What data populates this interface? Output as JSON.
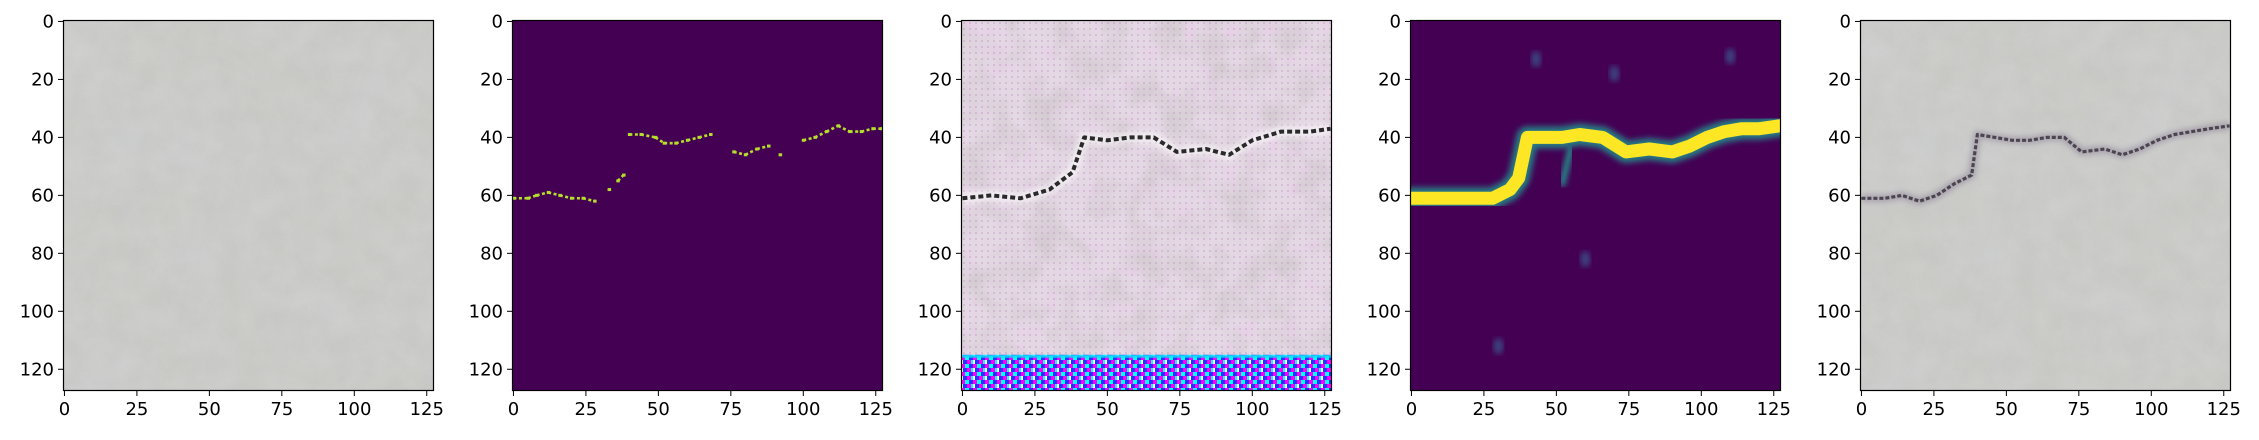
{
  "chart_data": {
    "type": "image_grid",
    "image_size": [
      128,
      128
    ],
    "x_ticks": [
      0,
      25,
      50,
      75,
      100,
      125
    ],
    "y_ticks": [
      0,
      20,
      40,
      60,
      80,
      100,
      120
    ],
    "xlim": [
      -0.5,
      127.5
    ],
    "ylim": [
      127.5,
      -0.5
    ],
    "panels": [
      {
        "kind": "concrete-texture",
        "description_colors": {
          "base": "#c9c9c6",
          "dark": "#a9aaa6",
          "light": "#dedcd8"
        }
      },
      {
        "kind": "binary-crack-mask",
        "colors": {
          "background": "#440154",
          "crack": "#b5de2b"
        },
        "crack_points": [
          [
            0,
            61
          ],
          [
            5,
            61
          ],
          [
            8,
            60
          ],
          [
            12,
            59
          ],
          [
            16,
            60
          ],
          [
            20,
            61
          ],
          [
            24,
            61
          ],
          [
            28,
            62
          ],
          [
            33,
            58
          ],
          [
            36,
            55
          ],
          [
            38,
            53
          ],
          [
            40,
            39
          ],
          [
            44,
            39
          ],
          [
            49,
            40
          ],
          [
            52,
            42
          ],
          [
            56,
            42
          ],
          [
            60,
            41
          ],
          [
            64,
            40
          ],
          [
            68,
            39
          ],
          [
            76,
            45
          ],
          [
            80,
            46
          ],
          [
            84,
            44
          ],
          [
            88,
            43
          ],
          [
            92,
            46
          ],
          [
            100,
            41
          ],
          [
            104,
            40
          ],
          [
            108,
            38
          ],
          [
            112,
            36
          ],
          [
            116,
            38
          ],
          [
            120,
            38
          ],
          [
            124,
            37
          ],
          [
            127,
            37
          ]
        ]
      },
      {
        "kind": "generated-texture-with-crack",
        "colors": {
          "base": "#e4d8e4",
          "pink": "#d9a8d9",
          "shadow": "#8f8a8a",
          "crack": "#2a2a2a",
          "stripe_magenta": "#ff00ff",
          "stripe_cyan": "#00ffff",
          "stripe_blue": "#2233ff"
        },
        "crack_points": [
          [
            0,
            61
          ],
          [
            10,
            60
          ],
          [
            20,
            61
          ],
          [
            30,
            58
          ],
          [
            38,
            52
          ],
          [
            42,
            40
          ],
          [
            50,
            41
          ],
          [
            58,
            40
          ],
          [
            66,
            40
          ],
          [
            74,
            45
          ],
          [
            84,
            44
          ],
          [
            92,
            46
          ],
          [
            100,
            41
          ],
          [
            110,
            38
          ],
          [
            120,
            38
          ],
          [
            127,
            37
          ]
        ],
        "artifact_band_rows": [
          115,
          127
        ]
      },
      {
        "kind": "crack-probability-map",
        "colors": {
          "background": "#440154",
          "mid": "#21918c",
          "high": "#fde725"
        },
        "crack_points": [
          [
            0,
            61
          ],
          [
            10,
            61
          ],
          [
            20,
            61
          ],
          [
            28,
            61
          ],
          [
            34,
            58
          ],
          [
            37,
            54
          ],
          [
            40,
            40
          ],
          [
            46,
            40
          ],
          [
            52,
            40
          ],
          [
            58,
            39
          ],
          [
            66,
            40
          ],
          [
            74,
            45
          ],
          [
            82,
            44
          ],
          [
            90,
            45
          ],
          [
            96,
            43
          ],
          [
            102,
            40
          ],
          [
            108,
            38
          ],
          [
            114,
            37
          ],
          [
            120,
            37
          ],
          [
            127,
            36
          ]
        ],
        "faint_blobs": [
          [
            43,
            13
          ],
          [
            70,
            18
          ],
          [
            110,
            12
          ],
          [
            60,
            82
          ],
          [
            30,
            112
          ]
        ]
      },
      {
        "kind": "concrete-texture-with-crack",
        "description_colors": {
          "base": "#c9c9c6",
          "dark": "#a9aaa6",
          "crack": "#3a3440",
          "tint": "#7a6a88"
        },
        "crack_points": [
          [
            0,
            61
          ],
          [
            8,
            61
          ],
          [
            14,
            60
          ],
          [
            20,
            62
          ],
          [
            26,
            60
          ],
          [
            32,
            56
          ],
          [
            38,
            53
          ],
          [
            40,
            39
          ],
          [
            46,
            40
          ],
          [
            52,
            41
          ],
          [
            58,
            41
          ],
          [
            64,
            40
          ],
          [
            70,
            40
          ],
          [
            76,
            45
          ],
          [
            84,
            44
          ],
          [
            90,
            46
          ],
          [
            96,
            44
          ],
          [
            102,
            41
          ],
          [
            108,
            39
          ],
          [
            114,
            38
          ],
          [
            120,
            37
          ],
          [
            127,
            36
          ]
        ]
      }
    ]
  }
}
